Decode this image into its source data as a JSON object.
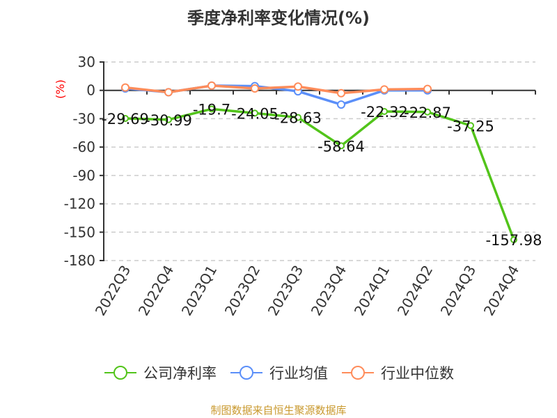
{
  "title": "季度净利率变化情况(%)",
  "source": "制图数据来自恒生聚源数据库",
  "chart_data": {
    "type": "line",
    "title": "季度净利率变化情况(%)",
    "xlabel": "",
    "ylabel": "(%)",
    "ylim": [
      -180,
      30
    ],
    "yticks": [
      30,
      0,
      -30,
      -60,
      -90,
      -120,
      -150,
      -180
    ],
    "grid": true,
    "legend_position": "bottom",
    "categories": [
      "2022Q3",
      "2022Q4",
      "2023Q1",
      "2023Q2",
      "2023Q3",
      "2023Q4",
      "2024Q1",
      "2024Q2",
      "2024Q3",
      "2024Q4"
    ],
    "series": [
      {
        "name": "公司净利率",
        "color": "#52c41a",
        "labels": true,
        "values": [
          -29.69,
          -30.99,
          -19.7,
          -24.05,
          -28.63,
          -58.64,
          -22.32,
          -22.87,
          -37.25,
          -157.98
        ]
      },
      {
        "name": "行业均值",
        "color": "#5b8ff9",
        "labels": false,
        "values": [
          2,
          -2,
          5,
          4.5,
          -1,
          -15,
          0,
          0,
          null,
          null
        ]
      },
      {
        "name": "行业中位数",
        "color": "#ff8c5a",
        "labels": false,
        "values": [
          3,
          -2,
          5,
          2,
          4,
          -3,
          1,
          1.5,
          null,
          null
        ]
      }
    ]
  }
}
